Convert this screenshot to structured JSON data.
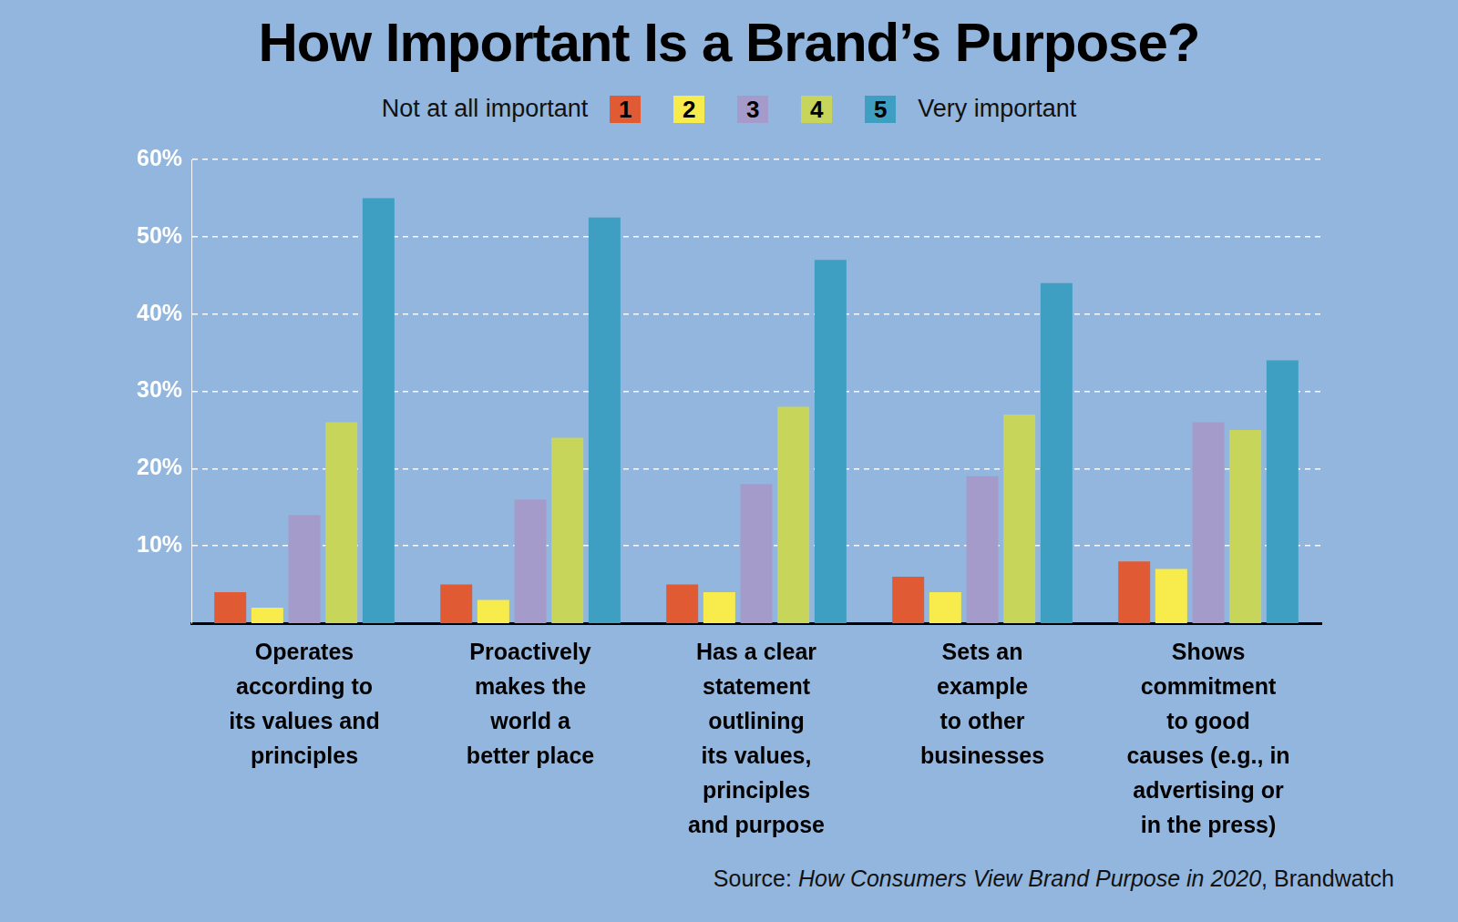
{
  "chart_data": {
    "type": "bar",
    "title": "How Important Is a Brand’s Purpose?",
    "legend_low_label": "Not at all important",
    "legend_high_label": "Very important",
    "source": "Source: How Consumers View Brand Purpose in 2020, Brandwatch",
    "source_italic": "How Consumers View Brand Purpose in 2020",
    "categories": [
      [
        "Operates",
        "according to",
        "its values and",
        "principles"
      ],
      [
        "Proactively",
        "makes the",
        "world a",
        "better place"
      ],
      [
        "Has a clear",
        "statement",
        "outlining",
        "its values,",
        "principles",
        "and purpose"
      ],
      [
        "Sets an",
        "example",
        "to other",
        "businesses"
      ],
      [
        "Shows",
        "commitment",
        "to good",
        "causes (e.g., in",
        "advertising or",
        "in the press)"
      ]
    ],
    "series": [
      {
        "name": "1",
        "color": "#e05a33",
        "values": [
          4,
          5,
          5,
          6,
          8
        ]
      },
      {
        "name": "2",
        "color": "#f8ec4c",
        "values": [
          2,
          3,
          4,
          4,
          7
        ]
      },
      {
        "name": "3",
        "color": "#a59bca",
        "values": [
          14,
          16,
          18,
          19,
          26
        ]
      },
      {
        "name": "4",
        "color": "#c7d65a",
        "values": [
          26,
          24,
          28,
          27,
          25
        ]
      },
      {
        "name": "5",
        "color": "#3f9fc2",
        "values": [
          55,
          52.5,
          47,
          44,
          34
        ]
      }
    ],
    "ylim": [
      0,
      60
    ],
    "yticks": [
      {
        "value": 10,
        "label": "10%"
      },
      {
        "value": 20,
        "label": "20%"
      },
      {
        "value": 30,
        "label": "30%"
      },
      {
        "value": 40,
        "label": "40%"
      },
      {
        "value": 50,
        "label": "50%"
      },
      {
        "value": 60,
        "label": "60%"
      }
    ],
    "grid": true,
    "legend": "top"
  }
}
